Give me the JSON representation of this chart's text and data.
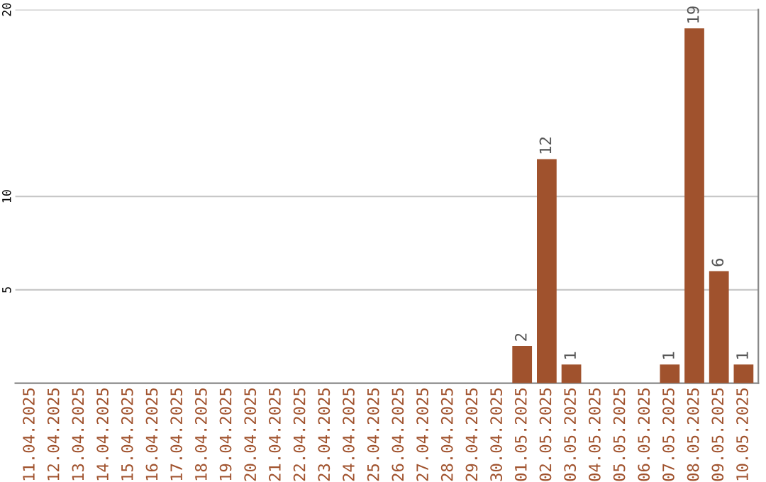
{
  "chart_data": {
    "type": "bar",
    "categories": [
      "11.04.2025",
      "12.04.2025",
      "13.04.2025",
      "14.04.2025",
      "15.04.2025",
      "16.04.2025",
      "17.04.2025",
      "18.04.2025",
      "19.04.2025",
      "20.04.2025",
      "21.04.2025",
      "22.04.2025",
      "23.04.2025",
      "24.04.2025",
      "25.04.2025",
      "26.04.2025",
      "27.04.2025",
      "28.04.2025",
      "29.04.2025",
      "30.04.2025",
      "01.05.2025",
      "02.05.2025",
      "03.05.2025",
      "04.05.2025",
      "05.05.2025",
      "06.05.2025",
      "07.05.2025",
      "08.05.2025",
      "09.05.2025",
      "10.05.2025"
    ],
    "values": [
      0,
      0,
      0,
      0,
      0,
      0,
      0,
      0,
      0,
      0,
      0,
      0,
      0,
      0,
      0,
      0,
      0,
      0,
      0,
      0,
      2,
      12,
      1,
      0,
      0,
      0,
      1,
      19,
      6,
      1
    ],
    "value_labels": [
      null,
      null,
      null,
      null,
      null,
      null,
      null,
      null,
      null,
      null,
      null,
      null,
      null,
      null,
      null,
      null,
      null,
      null,
      null,
      null,
      "2",
      "12",
      "1",
      null,
      null,
      null,
      "1",
      "19",
      "6",
      "1"
    ],
    "color": "#a0522d",
    "ylim": [
      0,
      20
    ],
    "yticks": [
      5,
      10,
      20
    ],
    "grid": "y"
  }
}
